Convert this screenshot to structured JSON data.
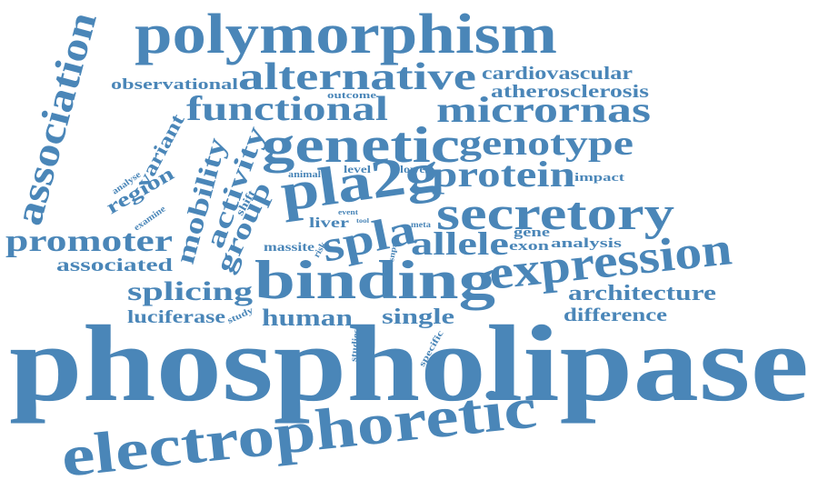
{
  "cloud": {
    "color": "#4a86b8",
    "words": [
      "phospholipase",
      "electrophoretic",
      "polymorphism",
      "binding",
      "genetic",
      "pla2g",
      "secretory",
      "expression",
      "association",
      "alternative",
      "functional",
      "micrornas",
      "genotype",
      "protein",
      "promoter",
      "spla",
      "allele",
      "activity",
      "mobility",
      "group",
      "splicing",
      "human",
      "single",
      "architecture",
      "difference",
      "cardiovascular",
      "atherosclerosis",
      "observational",
      "associated",
      "luciferase",
      "region",
      "variant",
      "liver",
      "analysis",
      "gene",
      "exon",
      "massite",
      "impact",
      "level",
      "lower",
      "outcome",
      "animal",
      "analyse",
      "examine",
      "shift",
      "event",
      "tool",
      "meta",
      "risk",
      "snps",
      "study",
      "studies",
      "specific"
    ]
  }
}
